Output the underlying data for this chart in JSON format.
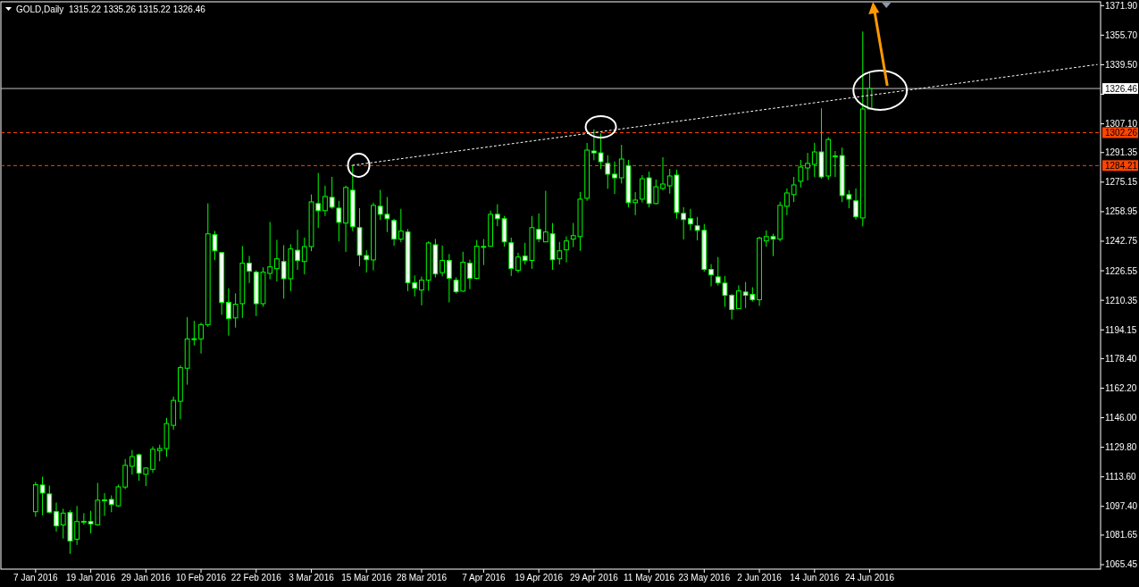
{
  "chart_data": {
    "type": "candlestick",
    "title": "GOLD,Daily  1315.22 1335.26 1315.22 1326.46",
    "categories": [
      "7 Jan 2016",
      null,
      null,
      null,
      null,
      null,
      null,
      null,
      "19 Jan 2016",
      null,
      null,
      null,
      null,
      null,
      null,
      null,
      "29 Jan 2016",
      null,
      null,
      null,
      null,
      null,
      null,
      null,
      "10 Feb 2016",
      null,
      null,
      null,
      null,
      null,
      null,
      null,
      "22 Feb 2016",
      null,
      null,
      null,
      null,
      null,
      null,
      null,
      "3 Mar 2016",
      null,
      null,
      null,
      null,
      null,
      null,
      null,
      "15 Mar 2016",
      null,
      null,
      null,
      null,
      null,
      null,
      null,
      "28 Mar 2016",
      null,
      null,
      null,
      null,
      null,
      null,
      null,
      null,
      "7 Apr 2016",
      null,
      null,
      null,
      null,
      null,
      null,
      null,
      "19 Apr 2016",
      null,
      null,
      null,
      null,
      null,
      null,
      null,
      "29 Apr 2016",
      null,
      null,
      null,
      null,
      null,
      null,
      null,
      "11 May 2016",
      null,
      null,
      null,
      null,
      null,
      null,
      null,
      "23 May 2016",
      null,
      null,
      null,
      null,
      null,
      null,
      null,
      "2 Jun 2016",
      null,
      null,
      null,
      null,
      null,
      null,
      null,
      "14 Jun 2016",
      null,
      null,
      null,
      null,
      null,
      null,
      null,
      "24 Jun 2016",
      null,
      null,
      null,
      null,
      null,
      null,
      null,
      null,
      null,
      null,
      null,
      null,
      null,
      null,
      null,
      null,
      null,
      null,
      null,
      null,
      null,
      null,
      null,
      null,
      null,
      null,
      null,
      null,
      null,
      null,
      null,
      null,
      null
    ],
    "ylim": [
      1063,
      1374
    ],
    "yticks": [
      {
        "value": 1371.9,
        "label": "1371.90"
      },
      {
        "value": 1355.7,
        "label": "1355.70"
      },
      {
        "value": 1339.5,
        "label": "1339.50"
      },
      {
        "value": 1323.3,
        "label": null
      },
      {
        "value": 1307.1,
        "label": "1307.10"
      },
      {
        "value": 1291.35,
        "label": "1291.35"
      },
      {
        "value": 1275.15,
        "label": "1275.15"
      },
      {
        "value": 1258.95,
        "label": "1258.95"
      },
      {
        "value": 1242.75,
        "label": "1242.75"
      },
      {
        "value": 1226.55,
        "label": "1226.55"
      },
      {
        "value": 1210.35,
        "label": "1210.35"
      },
      {
        "value": 1194.15,
        "label": "1194.15"
      },
      {
        "value": 1178.4,
        "label": "1178.40"
      },
      {
        "value": 1162.2,
        "label": "1162.20"
      },
      {
        "value": 1146,
        "label": "1146.00"
      },
      {
        "value": 1129.8,
        "label": "1129.80"
      },
      {
        "value": 1113.6,
        "label": "1113.60"
      },
      {
        "value": 1097.4,
        "label": "1097.40"
      },
      {
        "value": 1081.65,
        "label": "1081.65"
      },
      {
        "value": 1065.45,
        "label": "1065.45"
      }
    ],
    "ref_lines": [
      {
        "axis": "y",
        "value": 1326.46,
        "label": "1326.46",
        "color": "#c0c0c0",
        "line_style": "solid"
      },
      {
        "axis": "y",
        "value": 1302.26,
        "label": "1302.26",
        "color": "#ff4500",
        "line_style": "dashed"
      },
      {
        "axis": "y",
        "value": 1284.21,
        "label": "1284.21",
        "color": "#ff4500",
        "line_style": "dashed"
      }
    ],
    "series": [
      {
        "color": "#00ff00",
        "ohlc": [
          [
            1094.5,
            1110.8,
            1091.7,
            1109.3
          ],
          [
            1109.1,
            1113.7,
            1092.5,
            1104.7
          ],
          [
            1104.2,
            1108.8,
            1093.7,
            1094.2
          ],
          [
            1094.5,
            1099.5,
            1083.6,
            1086.7
          ],
          [
            1087.2,
            1096.1,
            1079.8,
            1093.7
          ],
          [
            1094,
            1095.3,
            1071.4,
            1078.4
          ],
          [
            1079.4,
            1097.6,
            1076.3,
            1089.1
          ],
          [
            1089.1,
            1093.7,
            1087.3,
            1089.2
          ],
          [
            1089.1,
            1095,
            1082.6,
            1087.8
          ],
          [
            1087.3,
            1110.3,
            1086.8,
            1100.8
          ],
          [
            1101,
            1104.7,
            1092.2,
            1100.6
          ],
          [
            1101.2,
            1103.4,
            1094.2,
            1098.4
          ],
          [
            1097.7,
            1109.3,
            1097.2,
            1108.1
          ],
          [
            1108,
            1123.3,
            1106.8,
            1119.9
          ],
          [
            1119.4,
            1128.3,
            1114.8,
            1124.7
          ],
          [
            1125.7,
            1126.4,
            1111.4,
            1115.6
          ],
          [
            1115,
            1118.9,
            1108.5,
            1118.4
          ],
          [
            1117.7,
            1130.3,
            1115.8,
            1128.7
          ],
          [
            1128,
            1131.2,
            1122.1,
            1129.1
          ],
          [
            1129.1,
            1145.9,
            1124.6,
            1142.8
          ],
          [
            1141.8,
            1157.6,
            1139.4,
            1155.5
          ],
          [
            1155,
            1174.7,
            1145.1,
            1173.4
          ],
          [
            1173.1,
            1201.1,
            1164.1,
            1189.2
          ],
          [
            1189.2,
            1199.1,
            1185.6,
            1189.3
          ],
          [
            1189.2,
            1198.1,
            1181.2,
            1197
          ],
          [
            1197,
            1263.5,
            1195.8,
            1246.8
          ],
          [
            1246.3,
            1248.4,
            1232.4,
            1237.5
          ],
          [
            1236.5,
            1236.5,
            1202.4,
            1209.2
          ],
          [
            1209.2,
            1217,
            1191,
            1200.4
          ],
          [
            1200.7,
            1214.2,
            1195.4,
            1208.2
          ],
          [
            1208.5,
            1240.1,
            1200.7,
            1230.7
          ],
          [
            1230.7,
            1234.7,
            1219.8,
            1226.3
          ],
          [
            1225.8,
            1226.8,
            1201.7,
            1208.5
          ],
          [
            1208.5,
            1228.4,
            1206.9,
            1225.8
          ],
          [
            1225.1,
            1253.3,
            1221.9,
            1228.7
          ],
          [
            1227.7,
            1243.5,
            1220.7,
            1233.1
          ],
          [
            1231.6,
            1240.6,
            1211.3,
            1222.2
          ],
          [
            1222.2,
            1241.1,
            1215.4,
            1238.5
          ],
          [
            1237.8,
            1249,
            1227.1,
            1232.1
          ],
          [
            1231.6,
            1244.7,
            1224.6,
            1239.8
          ],
          [
            1239.8,
            1268.4,
            1237.3,
            1264.3
          ],
          [
            1263.4,
            1280.2,
            1250,
            1259.5
          ],
          [
            1259.5,
            1273.2,
            1256.6,
            1267.3
          ],
          [
            1266.8,
            1278,
            1260.5,
            1261.4
          ],
          [
            1260.9,
            1264.9,
            1242.7,
            1253.1
          ],
          [
            1252.7,
            1273.2,
            1236.9,
            1272.2
          ],
          [
            1270.7,
            1284.4,
            1248.3,
            1250.7
          ],
          [
            1250.2,
            1260.9,
            1229,
            1235.1
          ],
          [
            1234.9,
            1237.8,
            1225.6,
            1232.6
          ],
          [
            1232.5,
            1263.9,
            1226.8,
            1262.4
          ],
          [
            1261.9,
            1270.9,
            1254.4,
            1257.5
          ],
          [
            1257.5,
            1267,
            1247.8,
            1255.1
          ],
          [
            1254.1,
            1255.1,
            1240.3,
            1243.9
          ],
          [
            1243.9,
            1260.5,
            1242.2,
            1248.3
          ],
          [
            1247.8,
            1249.4,
            1215.4,
            1220
          ],
          [
            1220,
            1224,
            1212.5,
            1217
          ],
          [
            1216,
            1223.4,
            1207.6,
            1221.4
          ],
          [
            1221.4,
            1242.7,
            1215.6,
            1241.8
          ],
          [
            1240.8,
            1244,
            1222.9,
            1224.8
          ],
          [
            1225.5,
            1240.4,
            1223.5,
            1232.2
          ],
          [
            1232.2,
            1235.7,
            1209.2,
            1222.4
          ],
          [
            1221.4,
            1222.9,
            1214.1,
            1215.1
          ],
          [
            1215.4,
            1237,
            1215.1,
            1231.2
          ],
          [
            1230.7,
            1232.6,
            1216.5,
            1222.4
          ],
          [
            1222.4,
            1243.4,
            1221.9,
            1240
          ],
          [
            1239.8,
            1243.9,
            1229.7,
            1239.9
          ],
          [
            1240,
            1259.5,
            1239.8,
            1257.5
          ],
          [
            1257.5,
            1263,
            1251,
            1255.1
          ],
          [
            1255.1,
            1256.6,
            1239.8,
            1242.4
          ],
          [
            1241.9,
            1244.7,
            1223.7,
            1227.8
          ],
          [
            1226.8,
            1236.4,
            1225.5,
            1234.1
          ],
          [
            1234.6,
            1241.9,
            1230,
            1232.2
          ],
          [
            1232.2,
            1256.6,
            1227.6,
            1250.2
          ],
          [
            1249.2,
            1258,
            1242.2,
            1243.9
          ],
          [
            1242.4,
            1270.4,
            1242.2,
            1247.8
          ],
          [
            1246.8,
            1252.7,
            1227.1,
            1232.6
          ],
          [
            1233.1,
            1242.4,
            1230,
            1237.5
          ],
          [
            1238,
            1245.4,
            1231.2,
            1242.9
          ],
          [
            1243.9,
            1252.7,
            1239.5,
            1245.8
          ],
          [
            1245.3,
            1269.7,
            1237.5,
            1265.8
          ],
          [
            1266.3,
            1296.6,
            1264.9,
            1292.7
          ],
          [
            1292.2,
            1304.1,
            1287.1,
            1291.2
          ],
          [
            1291.2,
            1301.9,
            1282.4,
            1286.3
          ],
          [
            1285.4,
            1289.9,
            1271.5,
            1279.5
          ],
          [
            1279.5,
            1286.5,
            1268.6,
            1277.5
          ],
          [
            1277.5,
            1295.6,
            1274.4,
            1287.8
          ],
          [
            1284.2,
            1287.3,
            1261.4,
            1263.9
          ],
          [
            1263.9,
            1269.7,
            1257,
            1265.3
          ],
          [
            1265.8,
            1279,
            1264,
            1277
          ],
          [
            1277.5,
            1280.9,
            1261.3,
            1263.4
          ],
          [
            1263.4,
            1276.6,
            1262.9,
            1272.6
          ],
          [
            1271.7,
            1288.8,
            1270.7,
            1274.1
          ],
          [
            1273.1,
            1282.4,
            1268.8,
            1278.5
          ],
          [
            1279,
            1281.9,
            1255.1,
            1258.5
          ],
          [
            1258,
            1261.4,
            1243.7,
            1254.6
          ],
          [
            1255.1,
            1260.5,
            1248.7,
            1252.2
          ],
          [
            1251.2,
            1256.1,
            1243.2,
            1248.7
          ],
          [
            1248.7,
            1252.2,
            1226.1,
            1227.3
          ],
          [
            1227.3,
            1230.2,
            1218,
            1224.3
          ],
          [
            1223.2,
            1234.1,
            1218.5,
            1219.9
          ],
          [
            1219.8,
            1223.7,
            1206.8,
            1213.1
          ],
          [
            1213.1,
            1213.8,
            1199.9,
            1205.3
          ],
          [
            1205.8,
            1218.5,
            1205.8,
            1215.5
          ],
          [
            1214.9,
            1220.4,
            1206.1,
            1213.1
          ],
          [
            1213.6,
            1217.5,
            1209.7,
            1210.7
          ],
          [
            1210.7,
            1245.2,
            1207.3,
            1244.5
          ],
          [
            1242.9,
            1248.7,
            1239.8,
            1245.3
          ],
          [
            1245.3,
            1246.8,
            1234.6,
            1243.9
          ],
          [
            1243.9,
            1264.4,
            1242.7,
            1262.4
          ],
          [
            1261.9,
            1271.7,
            1257,
            1269.2
          ],
          [
            1268.3,
            1278,
            1264.2,
            1273.6
          ],
          [
            1275.6,
            1287.3,
            1272.2,
            1283.4
          ],
          [
            1282.9,
            1291.2,
            1276.1,
            1285.4
          ],
          [
            1284.9,
            1296.7,
            1278,
            1291.7
          ],
          [
            1291.7,
            1315.6,
            1277,
            1278
          ],
          [
            1278.5,
            1299.8,
            1276.4,
            1298.5
          ],
          [
            1289.4,
            1292.2,
            1277.9,
            1289.5
          ],
          [
            1289.7,
            1294.1,
            1264.2,
            1267.8
          ],
          [
            1268.3,
            1270.7,
            1260.8,
            1265.8
          ],
          [
            1264.9,
            1271.7,
            1254.6,
            1256.1
          ],
          [
            1255.5,
            1357.7,
            1250.9,
            1315.22
          ],
          [
            1315.22,
            1335.26,
            1315.22,
            1326.46
          ],
          null,
          null,
          null,
          null,
          null,
          null,
          null,
          null,
          null,
          null,
          null,
          null,
          null,
          null,
          null,
          null,
          null,
          null,
          null,
          null,
          null,
          null,
          null,
          null,
          null,
          null,
          null,
          null,
          null,
          null,
          null,
          null,
          null
        ]
      },
      {
        "type": "line",
        "color": "#ffffff",
        "line_style": "dotted",
        "values": [
          null,
          null,
          null,
          null,
          null,
          null,
          null,
          null,
          null,
          null,
          null,
          null,
          null,
          null,
          null,
          null,
          null,
          null,
          null,
          null,
          null,
          null,
          null,
          null,
          null,
          null,
          null,
          null,
          null,
          null,
          null,
          null,
          null,
          null,
          null,
          null,
          null,
          null,
          null,
          null,
          null,
          null,
          null,
          null,
          null,
          null,
          1284.4,
          null,
          null,
          null,
          null,
          null,
          null,
          null,
          null,
          null,
          null,
          null,
          null,
          null,
          null,
          null,
          null,
          null,
          null,
          null,
          null,
          null,
          null,
          null,
          null,
          null,
          null,
          null,
          null,
          null,
          null,
          null,
          null,
          null,
          null,
          null,
          null,
          null,
          null,
          null,
          null,
          null,
          null,
          null,
          null,
          null,
          null,
          null,
          null,
          null,
          null,
          null,
          null,
          null,
          null,
          null,
          null,
          null,
          null,
          null,
          null,
          null,
          null,
          null,
          null,
          null,
          null,
          null,
          null,
          null,
          null,
          null,
          null,
          null,
          null,
          null,
          null,
          null,
          null,
          null,
          null,
          null,
          null,
          null,
          null,
          null,
          null,
          null,
          null,
          null,
          null,
          null,
          null,
          null,
          null,
          null,
          null,
          null,
          null,
          null,
          null,
          null,
          null,
          null,
          null,
          null,
          null,
          null,
          1339.6
        ]
      }
    ]
  }
}
